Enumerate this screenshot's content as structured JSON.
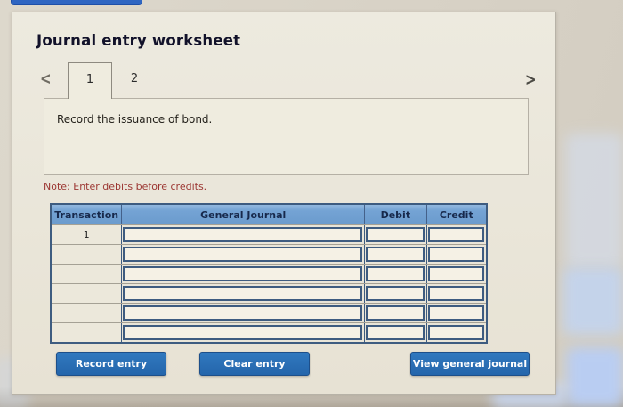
{
  "worksheet": {
    "title": "Journal entry worksheet",
    "pagination": {
      "prev_icon": "<",
      "next_icon": ">",
      "tabs": [
        {
          "label": "1",
          "active": true
        },
        {
          "label": "2",
          "active": false
        }
      ]
    },
    "instruction": "Record the issuance of bond.",
    "note": "Note: Enter debits before credits.",
    "table": {
      "headers": [
        "Transaction",
        "General Journal",
        "Debit",
        "Credit"
      ],
      "rows": [
        {
          "transaction": "1",
          "general_journal": "",
          "debit": "",
          "credit": ""
        },
        {
          "transaction": "",
          "general_journal": "",
          "debit": "",
          "credit": ""
        },
        {
          "transaction": "",
          "general_journal": "",
          "debit": "",
          "credit": ""
        },
        {
          "transaction": "",
          "general_journal": "",
          "debit": "",
          "credit": ""
        },
        {
          "transaction": "",
          "general_journal": "",
          "debit": "",
          "credit": ""
        },
        {
          "transaction": "",
          "general_journal": "",
          "debit": "",
          "credit": ""
        }
      ]
    },
    "buttons": {
      "record": "Record entry",
      "clear": "Clear entry",
      "view": "View general journal"
    },
    "colors": {
      "header_bg": "#74a3d4",
      "table_border": "#3e5c80",
      "button_bg": "#2a6cb4",
      "note_text": "#9c3733",
      "marker": "#3a62a6"
    }
  }
}
